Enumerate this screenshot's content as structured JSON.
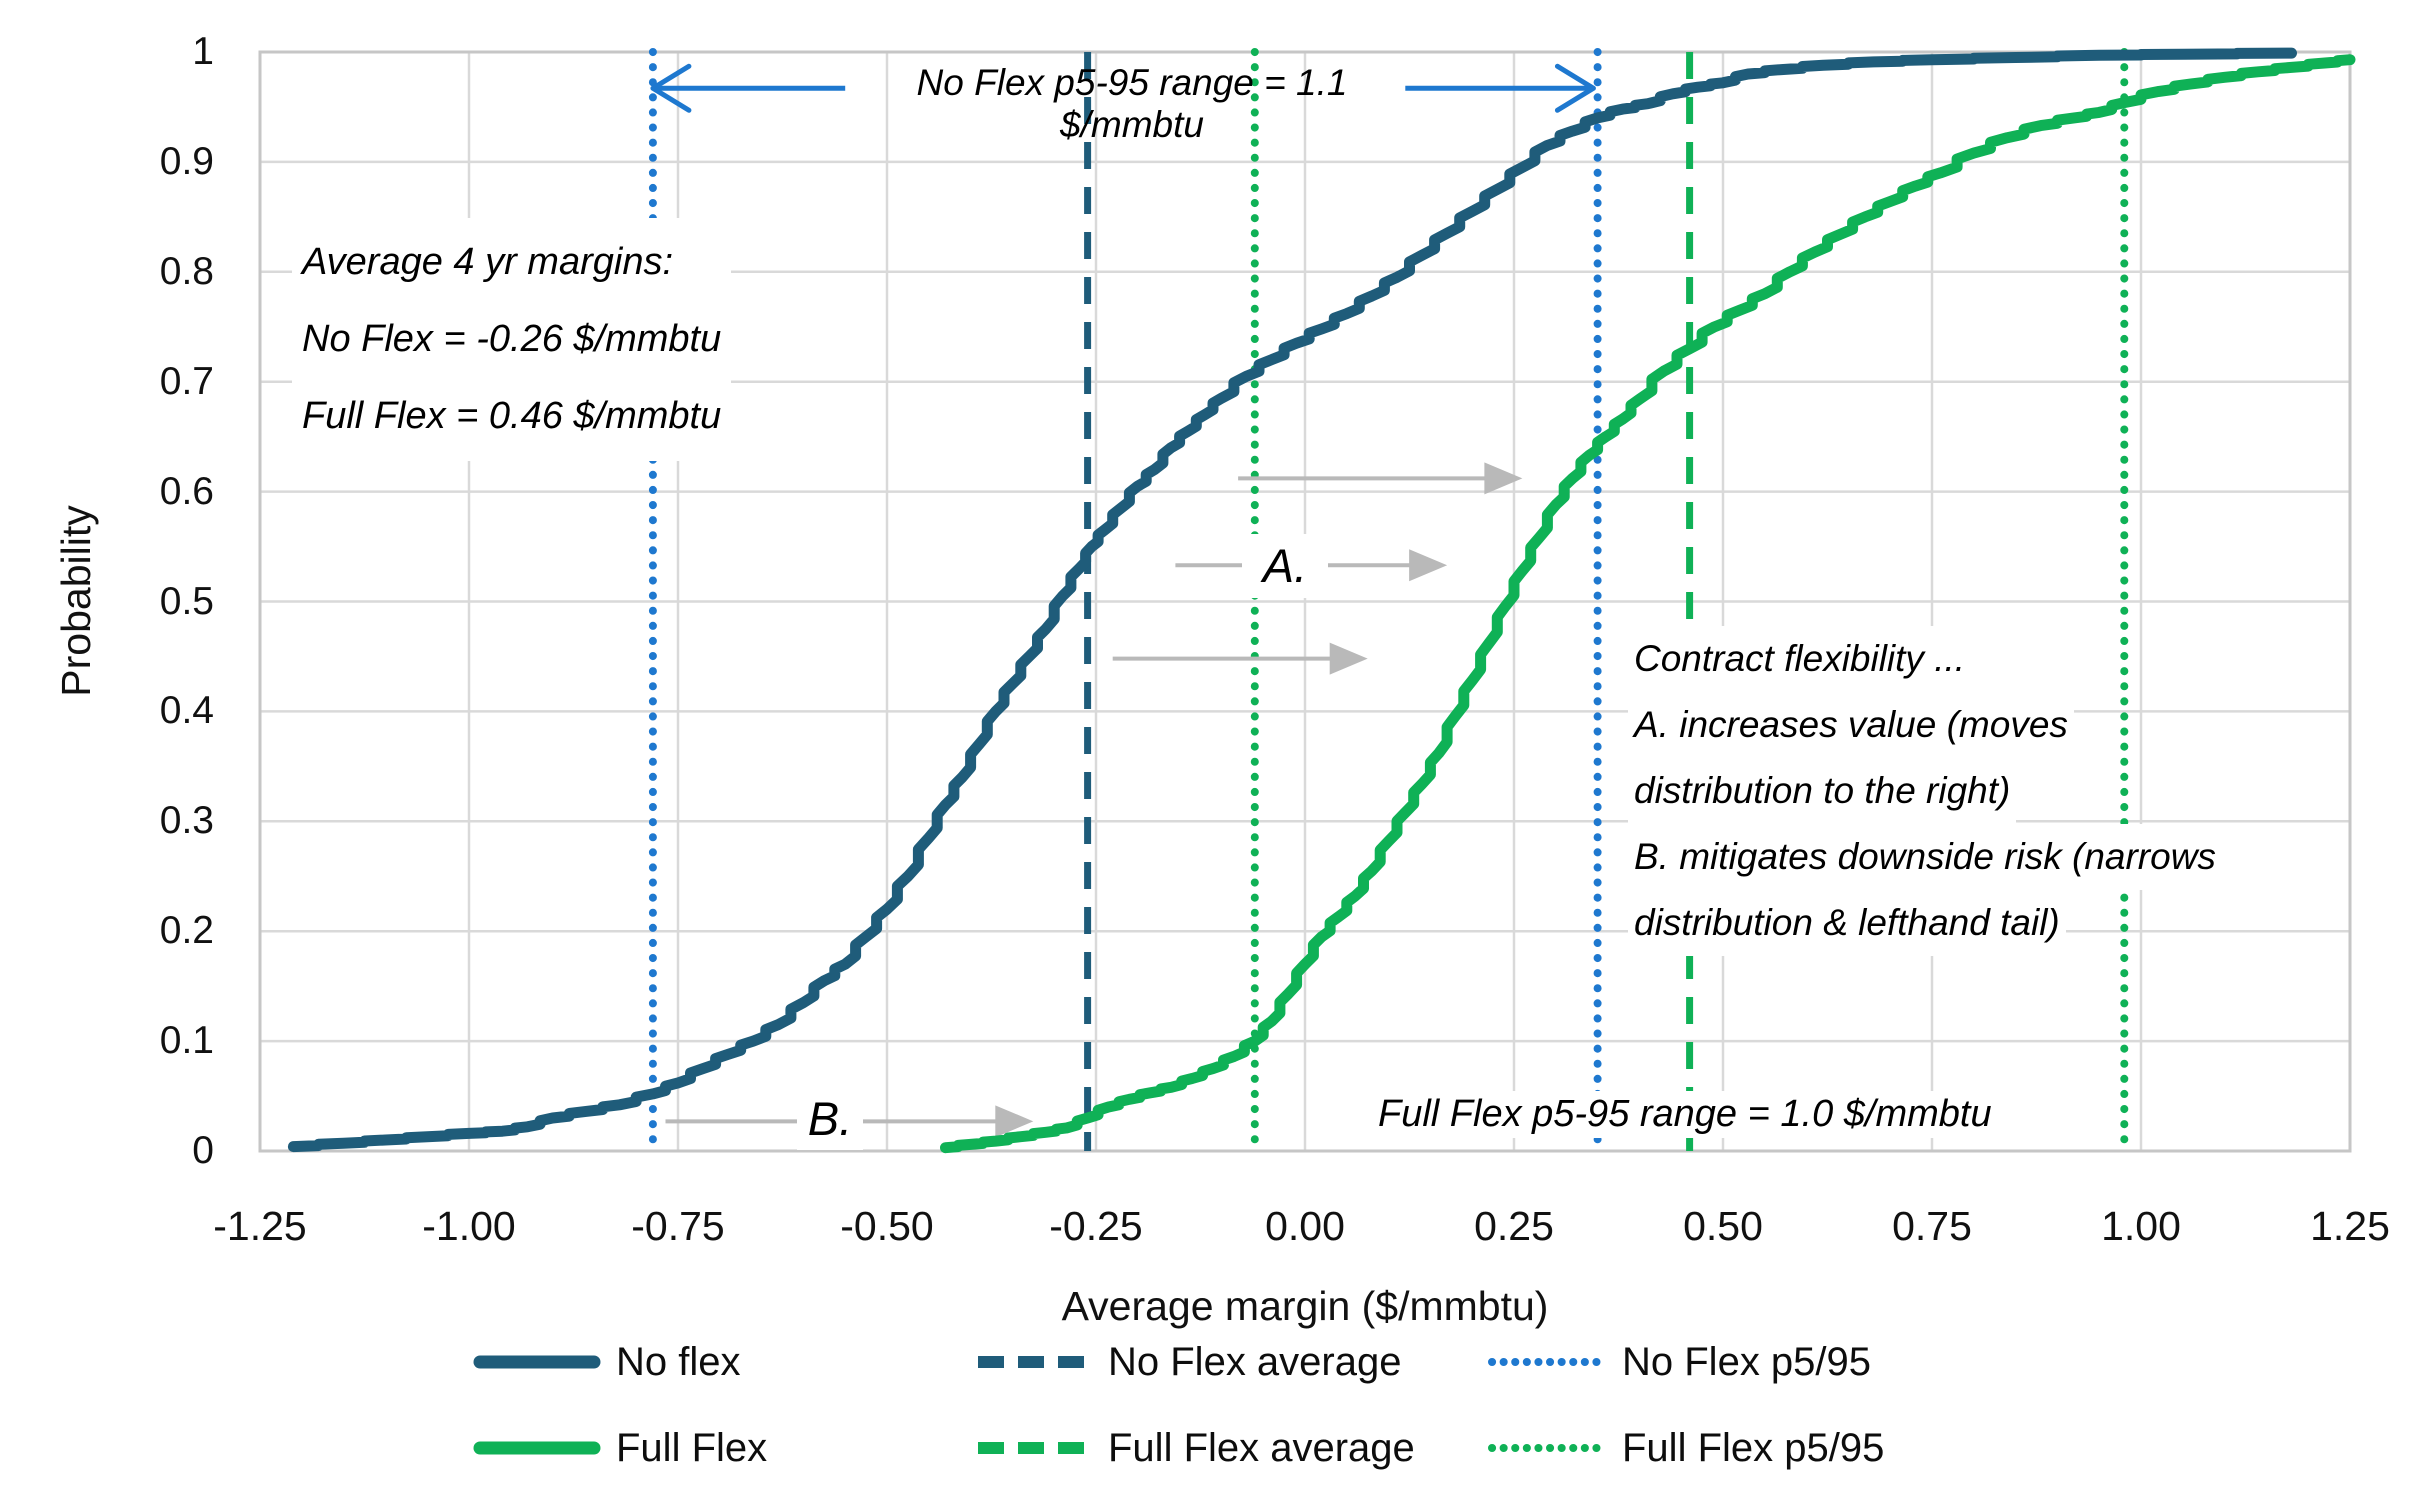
{
  "colors": {
    "no_flex": "#1f5c7a",
    "full_flex": "#0fb156",
    "p_blue": "#1e78cf",
    "gray_arrow": "#b9b9b9",
    "gridline": "#d9d9d9",
    "frame": "#c6c6c6"
  },
  "chart_data": {
    "type": "line",
    "subtype": "cumulative-distribution",
    "xlabel": "Average margin ($/mmbtu)",
    "ylabel": "Probability",
    "xlim": [
      -1.25,
      1.25
    ],
    "ylim": [
      0,
      1
    ],
    "grid": true,
    "xtick_values": [
      -1.25,
      -1.0,
      -0.75,
      -0.5,
      -0.25,
      0.0,
      0.25,
      0.5,
      0.75,
      1.0,
      1.25
    ],
    "xtick_labels": [
      "-1.25",
      "-1.00",
      "-0.75",
      "-0.50",
      "-0.25",
      "0.00",
      "0.25",
      "0.50",
      "0.75",
      "1.00",
      "1.25"
    ],
    "ytick_values": [
      0,
      0.1,
      0.2,
      0.3,
      0.4,
      0.5,
      0.6,
      0.7,
      0.8,
      0.9,
      1.0
    ],
    "ytick_labels": [
      "0",
      "0.1",
      "0.2",
      "0.3",
      "0.4",
      "0.5",
      "0.6",
      "0.7",
      "0.8",
      "0.9",
      "1"
    ],
    "series": [
      {
        "name": "No flex",
        "color_key": "no_flex",
        "points": [
          [
            -1.21,
            0.004
          ],
          [
            -1.15,
            0.007
          ],
          [
            -1.1,
            0.01
          ],
          [
            -1.05,
            0.013
          ],
          [
            -1.0,
            0.016
          ],
          [
            -0.96,
            0.018
          ],
          [
            -0.93,
            0.022
          ],
          [
            -0.9,
            0.03
          ],
          [
            -0.86,
            0.036
          ],
          [
            -0.82,
            0.042
          ],
          [
            -0.78,
            0.052
          ],
          [
            -0.75,
            0.062
          ],
          [
            -0.72,
            0.075
          ],
          [
            -0.69,
            0.088
          ],
          [
            -0.66,
            0.1
          ],
          [
            -0.63,
            0.115
          ],
          [
            -0.6,
            0.135
          ],
          [
            -0.575,
            0.155
          ],
          [
            -0.55,
            0.17
          ],
          [
            -0.525,
            0.195
          ],
          [
            -0.5,
            0.22
          ],
          [
            -0.475,
            0.25
          ],
          [
            -0.45,
            0.285
          ],
          [
            -0.43,
            0.315
          ],
          [
            -0.41,
            0.34
          ],
          [
            -0.39,
            0.37
          ],
          [
            -0.37,
            0.4
          ],
          [
            -0.35,
            0.425
          ],
          [
            -0.33,
            0.45
          ],
          [
            -0.31,
            0.475
          ],
          [
            -0.29,
            0.505
          ],
          [
            -0.27,
            0.53
          ],
          [
            -0.255,
            0.55
          ],
          [
            -0.24,
            0.565
          ],
          [
            -0.22,
            0.585
          ],
          [
            -0.2,
            0.605
          ],
          [
            -0.18,
            0.62
          ],
          [
            -0.16,
            0.64
          ],
          [
            -0.14,
            0.655
          ],
          [
            -0.12,
            0.67
          ],
          [
            -0.1,
            0.685
          ],
          [
            -0.07,
            0.705
          ],
          [
            -0.04,
            0.72
          ],
          [
            -0.01,
            0.735
          ],
          [
            0.02,
            0.748
          ],
          [
            0.05,
            0.762
          ],
          [
            0.08,
            0.778
          ],
          [
            0.11,
            0.795
          ],
          [
            0.14,
            0.815
          ],
          [
            0.17,
            0.835
          ],
          [
            0.2,
            0.855
          ],
          [
            0.23,
            0.875
          ],
          [
            0.26,
            0.895
          ],
          [
            0.29,
            0.915
          ],
          [
            0.32,
            0.928
          ],
          [
            0.35,
            0.94
          ],
          [
            0.38,
            0.948
          ],
          [
            0.41,
            0.953
          ],
          [
            0.44,
            0.962
          ],
          [
            0.47,
            0.968
          ],
          [
            0.5,
            0.972
          ],
          [
            0.53,
            0.98
          ],
          [
            0.57,
            0.984
          ],
          [
            0.62,
            0.988
          ],
          [
            0.68,
            0.991
          ],
          [
            0.75,
            0.993
          ],
          [
            0.85,
            0.995
          ],
          [
            0.95,
            0.997
          ],
          [
            1.05,
            0.998
          ],
          [
            1.18,
            0.999
          ]
        ]
      },
      {
        "name": "Full Flex",
        "color_key": "full_flex",
        "points": [
          [
            -0.43,
            0.003
          ],
          [
            -0.4,
            0.006
          ],
          [
            -0.37,
            0.009
          ],
          [
            -0.34,
            0.013
          ],
          [
            -0.31,
            0.017
          ],
          [
            -0.285,
            0.021
          ],
          [
            -0.26,
            0.03
          ],
          [
            -0.235,
            0.04
          ],
          [
            -0.21,
            0.047
          ],
          [
            -0.185,
            0.053
          ],
          [
            -0.16,
            0.058
          ],
          [
            -0.135,
            0.066
          ],
          [
            -0.11,
            0.075
          ],
          [
            -0.085,
            0.086
          ],
          [
            -0.06,
            0.1
          ],
          [
            -0.04,
            0.118
          ],
          [
            -0.02,
            0.143
          ],
          [
            0.0,
            0.17
          ],
          [
            0.02,
            0.195
          ],
          [
            0.04,
            0.213
          ],
          [
            0.06,
            0.232
          ],
          [
            0.08,
            0.255
          ],
          [
            0.1,
            0.282
          ],
          [
            0.12,
            0.308
          ],
          [
            0.14,
            0.334
          ],
          [
            0.16,
            0.362
          ],
          [
            0.18,
            0.396
          ],
          [
            0.2,
            0.428
          ],
          [
            0.22,
            0.462
          ],
          [
            0.24,
            0.496
          ],
          [
            0.26,
            0.528
          ],
          [
            0.28,
            0.558
          ],
          [
            0.3,
            0.588
          ],
          [
            0.32,
            0.612
          ],
          [
            0.34,
            0.633
          ],
          [
            0.36,
            0.65
          ],
          [
            0.38,
            0.666
          ],
          [
            0.4,
            0.684
          ],
          [
            0.43,
            0.71
          ],
          [
            0.46,
            0.73
          ],
          [
            0.49,
            0.75
          ],
          [
            0.52,
            0.765
          ],
          [
            0.55,
            0.78
          ],
          [
            0.58,
            0.8
          ],
          [
            0.61,
            0.818
          ],
          [
            0.64,
            0.834
          ],
          [
            0.67,
            0.85
          ],
          [
            0.7,
            0.864
          ],
          [
            0.73,
            0.878
          ],
          [
            0.76,
            0.89
          ],
          [
            0.8,
            0.908
          ],
          [
            0.84,
            0.922
          ],
          [
            0.88,
            0.933
          ],
          [
            0.92,
            0.94
          ],
          [
            0.95,
            0.945
          ],
          [
            0.98,
            0.954
          ],
          [
            1.02,
            0.964
          ],
          [
            1.06,
            0.971
          ],
          [
            1.1,
            0.977
          ],
          [
            1.14,
            0.982
          ],
          [
            1.18,
            0.986
          ],
          [
            1.22,
            0.99
          ],
          [
            1.25,
            0.993
          ]
        ]
      }
    ],
    "ref_lines": [
      {
        "id": "no-flex-average",
        "x": -0.26,
        "style": "dash",
        "color_key": "no_flex"
      },
      {
        "id": "no-flex-p5",
        "x": -0.78,
        "style": "dot",
        "color_key": "p_blue"
      },
      {
        "id": "no-flex-p95",
        "x": 0.35,
        "style": "dot",
        "color_key": "p_blue"
      },
      {
        "id": "full-flex-average",
        "x": 0.46,
        "style": "dash",
        "color_key": "full_flex"
      },
      {
        "id": "full-flex-p5",
        "x": -0.06,
        "style": "dot",
        "color_key": "full_flex"
      },
      {
        "id": "full-flex-p95",
        "x": 0.98,
        "style": "dot",
        "color_key": "full_flex"
      }
    ],
    "arrows": [
      {
        "id": "no-flex-range-arrow-left",
        "x1": -0.55,
        "x2": -0.78,
        "y": 0.967,
        "color_key": "p_blue",
        "head": "open"
      },
      {
        "id": "no-flex-range-arrow-right",
        "x1": 0.12,
        "x2": 0.345,
        "y": 0.967,
        "color_key": "p_blue",
        "head": "open"
      },
      {
        "id": "shift-arrow-upper",
        "x1": -0.08,
        "x2": 0.26,
        "y": 0.612,
        "color_key": "gray_arrow",
        "head": "solid"
      },
      {
        "id": "shift-arrow-middle",
        "x1": -0.155,
        "x2": 0.17,
        "y": 0.533,
        "color_key": "gray_arrow",
        "head": "solid"
      },
      {
        "id": "shift-arrow-lower",
        "x1": -0.23,
        "x2": 0.075,
        "y": 0.448,
        "color_key": "gray_arrow",
        "head": "solid"
      },
      {
        "id": "shift-arrow-b",
        "x1": -0.765,
        "x2": -0.325,
        "y": 0.027,
        "color_key": "gray_arrow",
        "head": "solid"
      }
    ],
    "legend_position": "bottom"
  },
  "annotations": {
    "top_note": "No Flex p5-95 range = 1.1 $/mmbtu",
    "avg_lines": [
      "Average 4 yr margins:",
      "No Flex =  -0.26 $/mmbtu",
      "Full Flex = 0.46  $/mmbtu"
    ],
    "label_a": "A.",
    "label_b": "B.",
    "flex_lines": [
      "Contract flexibility ...",
      "A. increases value (moves",
      "distribution to the right)",
      "B. mitigates downside risk (narrows",
      "distribution & lefthand tail)"
    ],
    "range_note": "Full Flex p5-95 range = 1.0 $/mmbtu"
  },
  "axes": {
    "xlabel": "Average margin ($/mmbtu)",
    "ylabel": "Probability"
  },
  "legend": {
    "no_flex": "No flex",
    "no_flex_average": "No Flex average",
    "no_flex_p595": "No Flex p5/95",
    "full_flex": "Full Flex",
    "full_flex_average": "Full Flex average",
    "full_flex_p595": "Full Flex p5/95"
  }
}
